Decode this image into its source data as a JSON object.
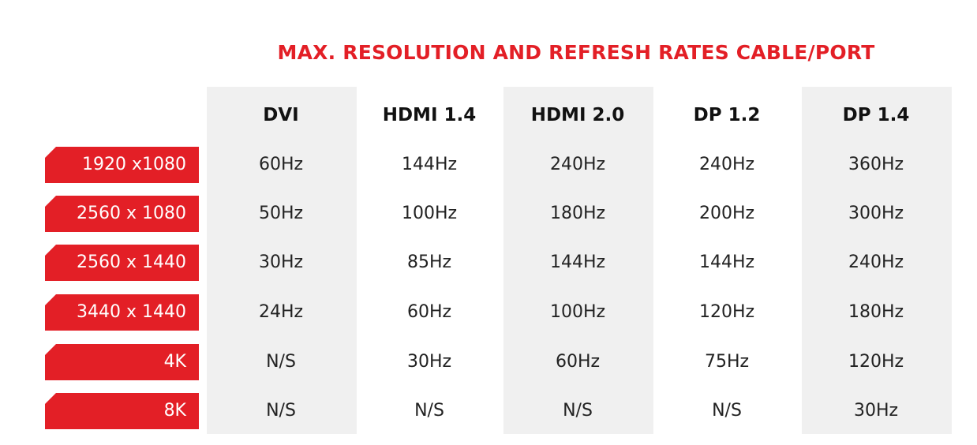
{
  "chart_data": {
    "type": "table",
    "title": "MAX. RESOLUTION AND REFRESH RATES CABLE/PORT",
    "columns": [
      "DVI",
      "HDMI 1.4",
      "HDMI 2.0",
      "DP 1.2",
      "DP 1.4"
    ],
    "rows": [
      {
        "resolution": "1920 x1080",
        "values": [
          "60Hz",
          "144Hz",
          "240Hz",
          "240Hz",
          "360Hz"
        ]
      },
      {
        "resolution": "2560 x 1080",
        "values": [
          "50Hz",
          "100Hz",
          "180Hz",
          "200Hz",
          "300Hz"
        ]
      },
      {
        "resolution": "2560 x 1440",
        "values": [
          "30Hz",
          "85Hz",
          "144Hz",
          "144Hz",
          "240Hz"
        ]
      },
      {
        "resolution": "3440 x 1440",
        "values": [
          "24Hz",
          "60Hz",
          "100Hz",
          "120Hz",
          "180Hz"
        ]
      },
      {
        "resolution": "4K",
        "values": [
          "N/S",
          "30Hz",
          "60Hz",
          "75Hz",
          "120Hz"
        ]
      },
      {
        "resolution": "8K",
        "values": [
          "N/S",
          "N/S",
          "N/S",
          "N/S",
          "30Hz"
        ]
      }
    ],
    "shaded_columns": [
      "DVI",
      "HDMI 2.0",
      "DP 1.4"
    ],
    "colors": {
      "accent": "#e31f26",
      "column_shade": "#f0f0f0",
      "text": "#222222"
    }
  }
}
